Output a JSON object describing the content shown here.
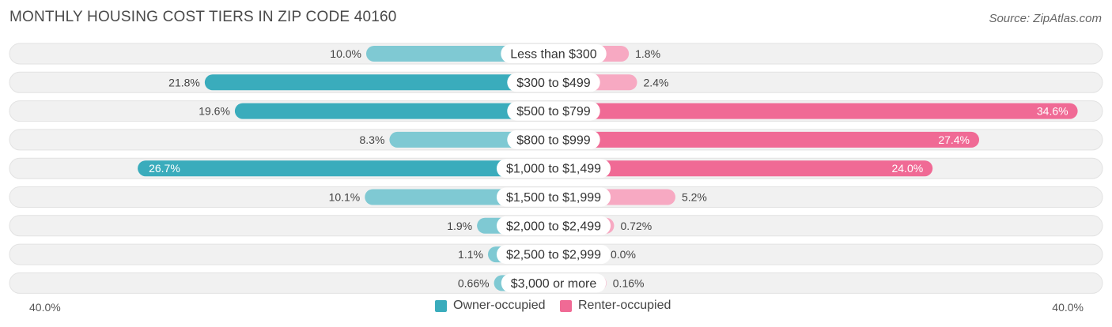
{
  "title": "MONTHLY HOUSING COST TIERS IN ZIP CODE 40160",
  "source": "Source: ZipAtlas.com",
  "colors": {
    "owner": "#3aacbc",
    "owner_light": "#7fc9d3",
    "renter": "#f06a95",
    "renter_light": "#f7a9c2",
    "row_bg": "#f1f1f1"
  },
  "legend": {
    "owner_label": "Owner-occupied",
    "renter_label": "Renter-occupied"
  },
  "axis": {
    "left_label": "40.0%",
    "right_label": "40.0%"
  },
  "chart_data": {
    "type": "bar",
    "orientation": "diverging-horizontal",
    "title": "MONTHLY HOUSING COST TIERS IN ZIP CODE 40160",
    "xlim": [
      -40,
      40
    ],
    "categories": [
      "Less than $300",
      "$300 to $499",
      "$500 to $799",
      "$800 to $999",
      "$1,000 to $1,499",
      "$1,500 to $1,999",
      "$2,000 to $2,499",
      "$2,500 to $2,999",
      "$3,000 or more"
    ],
    "series": [
      {
        "name": "Owner-occupied",
        "values": [
          10.0,
          21.8,
          19.6,
          8.3,
          26.7,
          10.1,
          1.9,
          1.1,
          0.66
        ],
        "labels": [
          "10.0%",
          "21.8%",
          "19.6%",
          "8.3%",
          "26.7%",
          "10.1%",
          "1.9%",
          "1.1%",
          "0.66%"
        ]
      },
      {
        "name": "Renter-occupied",
        "values": [
          1.8,
          2.4,
          34.6,
          27.4,
          24.0,
          5.2,
          0.72,
          0.0,
          0.16
        ],
        "labels": [
          "1.8%",
          "2.4%",
          "34.6%",
          "27.4%",
          "24.0%",
          "5.2%",
          "0.72%",
          "0.0%",
          "0.16%"
        ]
      }
    ],
    "legend": "bottom-center"
  }
}
